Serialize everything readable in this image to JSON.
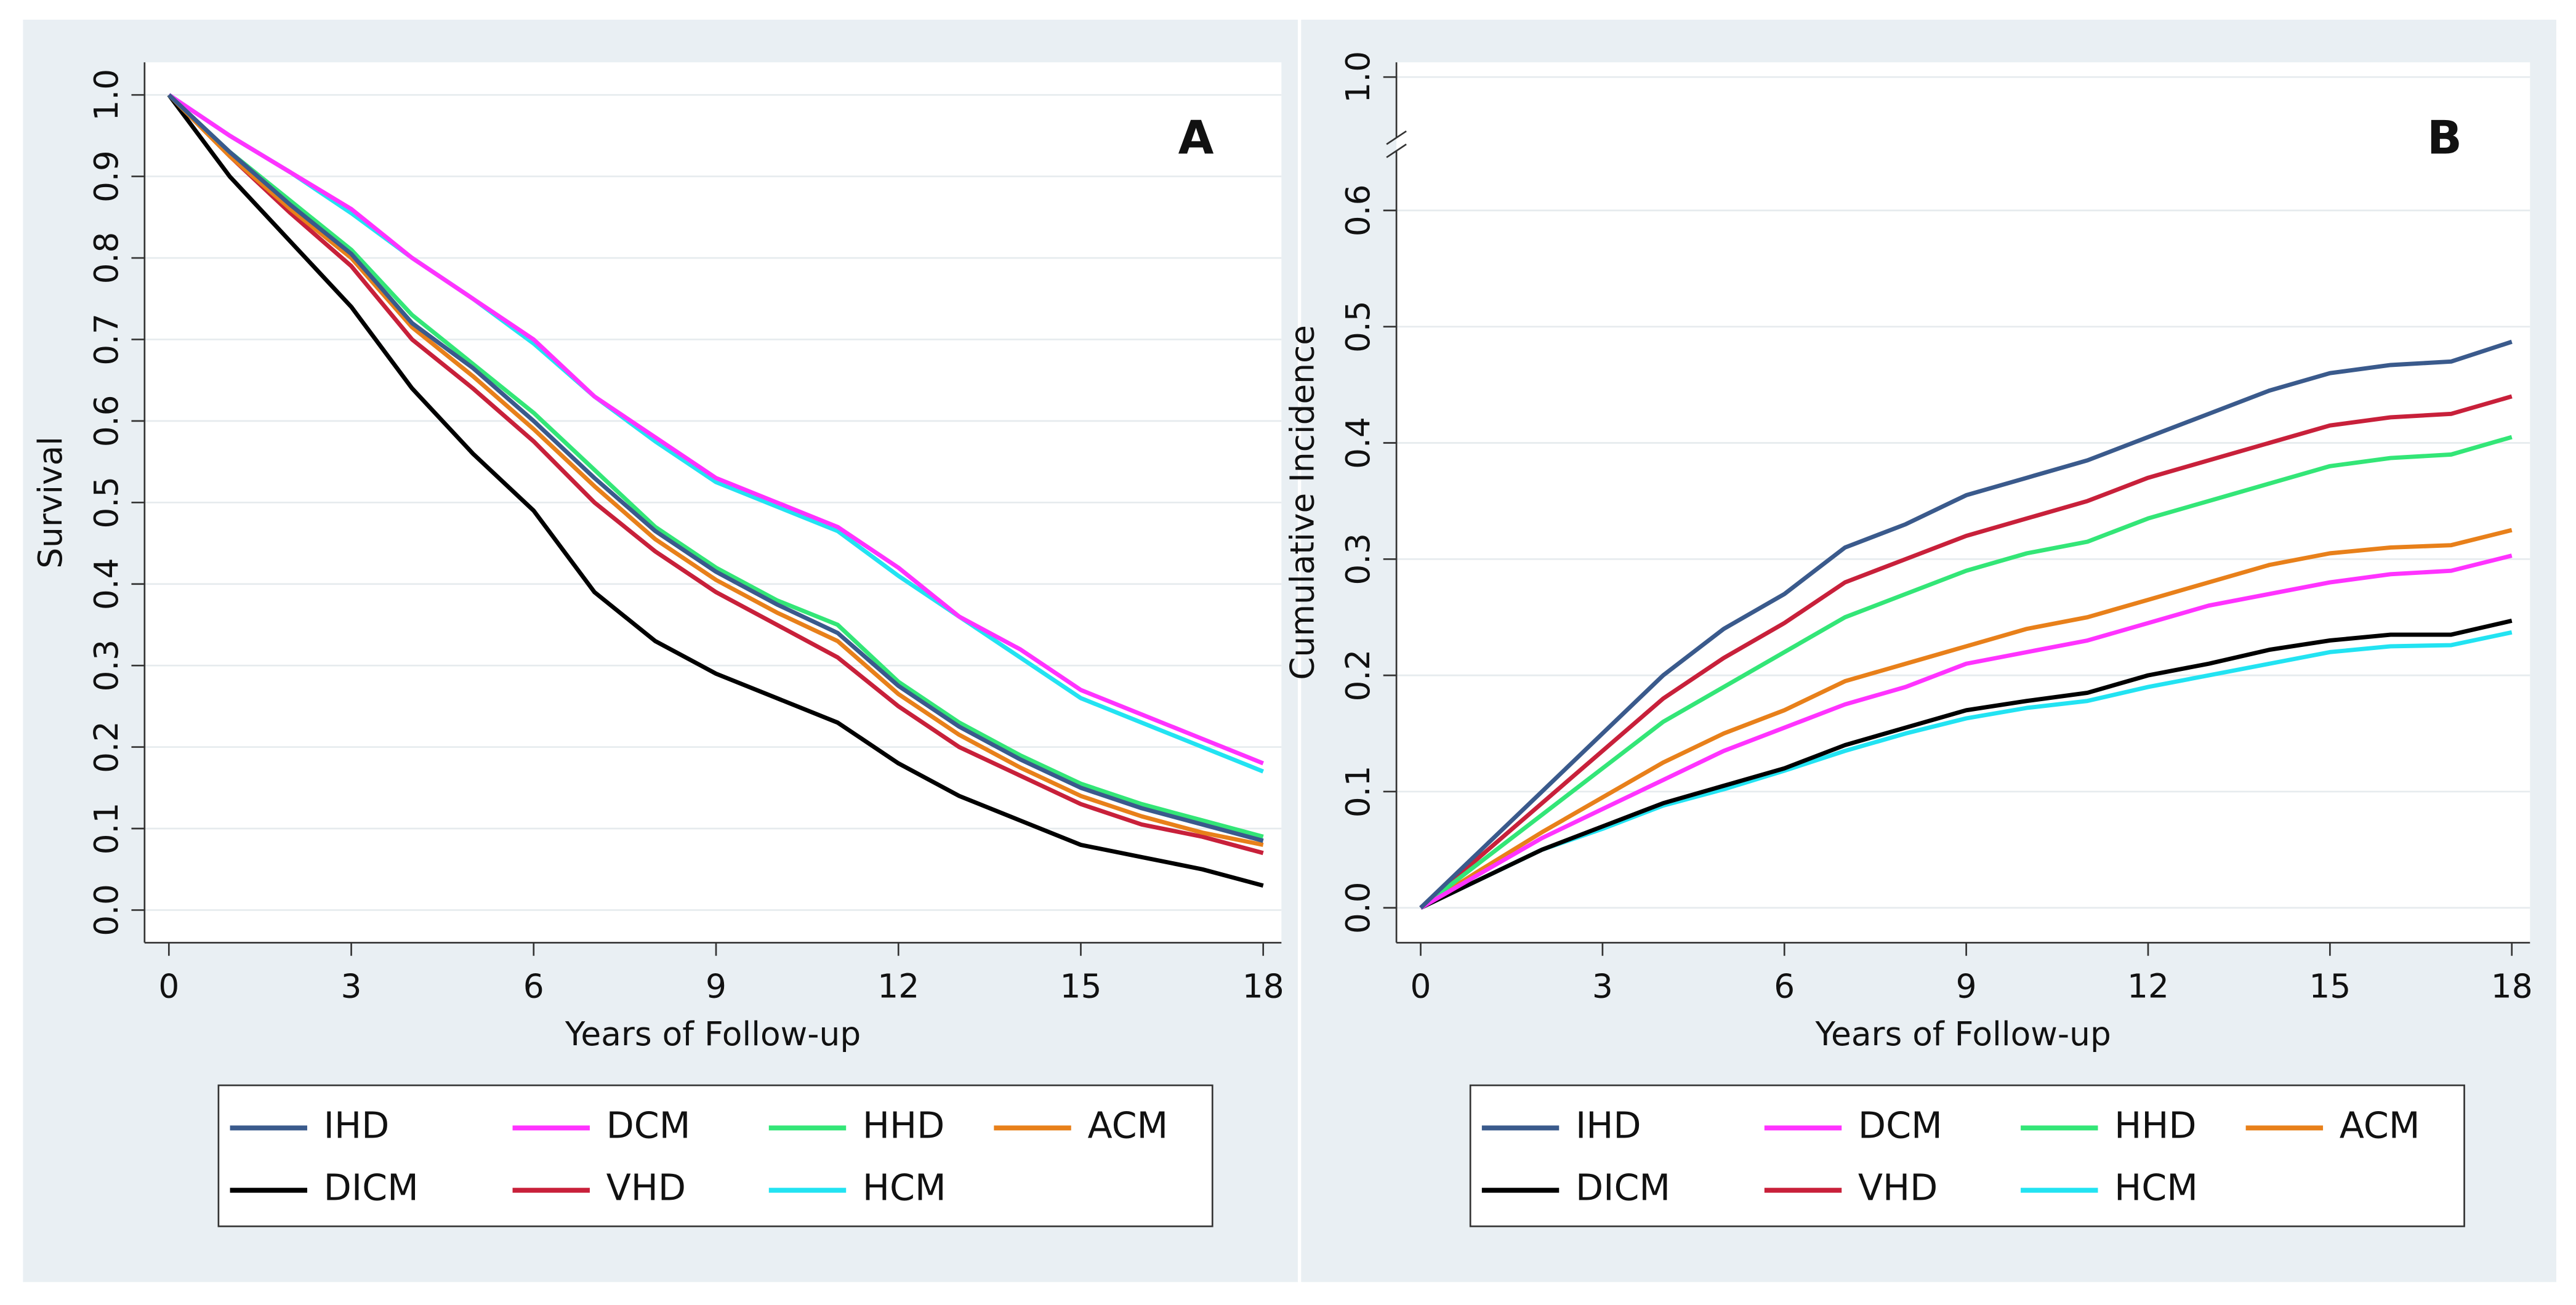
{
  "chart_data": [
    {
      "type": "line",
      "annotation": "A",
      "ylabel": "Survival",
      "xlabel": "Years of Follow-up",
      "x": [
        0,
        1,
        2,
        3,
        4,
        5,
        6,
        7,
        8,
        9,
        10,
        11,
        12,
        13,
        14,
        15,
        16,
        17,
        18
      ],
      "xlim": [
        -0.4,
        18.3
      ],
      "xticks": [
        0,
        3,
        6,
        9,
        12,
        15,
        18
      ],
      "ylim": [
        -0.04,
        1.04
      ],
      "yticks": [
        {
          "value": 0,
          "label": "0.0"
        },
        0.1,
        0.2,
        0.3,
        0.4,
        0.5,
        0.6,
        0.7,
        0.8,
        0.9,
        {
          "value": 1,
          "label": "1.0"
        }
      ],
      "grid": true,
      "series": [
        {
          "name": "IHD",
          "color": "#3a5a8c",
          "values": [
            1,
            0.93,
            0.865,
            0.805,
            0.72,
            0.665,
            0.6,
            0.53,
            0.465,
            0.415,
            0.375,
            0.34,
            0.275,
            0.225,
            0.185,
            0.15,
            0.125,
            0.105,
            0.085
          ]
        },
        {
          "name": "DCM",
          "color": "#ff33ff",
          "values": [
            1,
            0.95,
            0.905,
            0.86,
            0.8,
            0.75,
            0.7,
            0.63,
            0.58,
            0.53,
            0.5,
            0.47,
            0.42,
            0.36,
            0.32,
            0.27,
            0.24,
            0.21,
            0.18
          ]
        },
        {
          "name": "HHD",
          "color": "#33e677",
          "values": [
            1,
            0.93,
            0.87,
            0.81,
            0.73,
            0.67,
            0.61,
            0.54,
            0.47,
            0.42,
            0.38,
            0.35,
            0.28,
            0.23,
            0.19,
            0.155,
            0.13,
            0.11,
            0.09
          ]
        },
        {
          "name": "ACM",
          "color": "#e8801a",
          "values": [
            1,
            0.925,
            0.86,
            0.8,
            0.715,
            0.655,
            0.59,
            0.52,
            0.455,
            0.405,
            0.365,
            0.33,
            0.265,
            0.215,
            0.175,
            0.14,
            0.115,
            0.095,
            0.08
          ]
        },
        {
          "name": "DICM",
          "color": "#000000",
          "values": [
            1,
            0.9,
            0.82,
            0.74,
            0.64,
            0.56,
            0.49,
            0.39,
            0.33,
            0.29,
            0.26,
            0.23,
            0.18,
            0.14,
            0.11,
            0.08,
            0.065,
            0.05,
            0.03
          ]
        },
        {
          "name": "VHD",
          "color": "#c8203a",
          "values": [
            1,
            0.925,
            0.855,
            0.79,
            0.7,
            0.64,
            0.575,
            0.5,
            0.44,
            0.39,
            0.35,
            0.31,
            0.25,
            0.2,
            0.165,
            0.13,
            0.105,
            0.09,
            0.07
          ]
        },
        {
          "name": "HCM",
          "color": "#22e3f2",
          "values": [
            1,
            0.95,
            0.905,
            0.855,
            0.8,
            0.75,
            0.695,
            0.63,
            0.575,
            0.525,
            0.495,
            0.465,
            0.41,
            0.36,
            0.31,
            0.26,
            0.23,
            0.2,
            0.17
          ]
        }
      ]
    },
    {
      "type": "line",
      "annotation": "B",
      "ylabel": "Cumulative Incidence",
      "xlabel": "Years of Follow-up",
      "x": [
        0,
        1,
        2,
        3,
        4,
        5,
        6,
        7,
        8,
        9,
        10,
        11,
        12,
        13,
        14,
        15,
        16,
        17,
        18
      ],
      "xlim": [
        -0.4,
        18.3
      ],
      "xticks": [
        0,
        3,
        6,
        9,
        12,
        15,
        18
      ],
      "ylim": [
        -0.03,
        0.64
      ],
      "yticks": [
        {
          "value": 0,
          "label": "0.0"
        },
        0.1,
        0.2,
        0.3,
        0.4,
        0.5,
        0.6
      ],
      "ybreak_tick": {
        "value": 1,
        "label": "1.0"
      },
      "grid": true,
      "series": [
        {
          "name": "IHD",
          "color": "#3a5a8c",
          "values": [
            0,
            0.05,
            0.1,
            0.15,
            0.2,
            0.24,
            0.27,
            0.31,
            0.33,
            0.355,
            0.37,
            0.385,
            0.405,
            0.425,
            0.445,
            0.46,
            0.467,
            0.47,
            0.487
          ]
        },
        {
          "name": "DCM",
          "color": "#ff33ff",
          "values": [
            0,
            0.03,
            0.06,
            0.085,
            0.11,
            0.135,
            0.155,
            0.175,
            0.19,
            0.21,
            0.22,
            0.23,
            0.245,
            0.26,
            0.27,
            0.28,
            0.287,
            0.29,
            0.303
          ]
        },
        {
          "name": "HHD",
          "color": "#33e677",
          "values": [
            0,
            0.04,
            0.08,
            0.12,
            0.16,
            0.19,
            0.22,
            0.25,
            0.27,
            0.29,
            0.305,
            0.315,
            0.335,
            0.35,
            0.365,
            0.38,
            0.387,
            0.39,
            0.405
          ]
        },
        {
          "name": "ACM",
          "color": "#e8801a",
          "values": [
            0,
            0.033,
            0.065,
            0.095,
            0.125,
            0.15,
            0.17,
            0.195,
            0.21,
            0.225,
            0.24,
            0.25,
            0.265,
            0.28,
            0.295,
            0.305,
            0.31,
            0.312,
            0.325
          ]
        },
        {
          "name": "DICM",
          "color": "#000000",
          "values": [
            0,
            0.025,
            0.05,
            0.07,
            0.09,
            0.105,
            0.12,
            0.14,
            0.155,
            0.17,
            0.178,
            0.185,
            0.2,
            0.21,
            0.222,
            0.23,
            0.235,
            0.235,
            0.247
          ]
        },
        {
          "name": "VHD",
          "color": "#c8203a",
          "values": [
            0,
            0.045,
            0.09,
            0.135,
            0.18,
            0.215,
            0.245,
            0.28,
            0.3,
            0.32,
            0.335,
            0.35,
            0.37,
            0.385,
            0.4,
            0.415,
            0.422,
            0.425,
            0.44
          ]
        },
        {
          "name": "HCM",
          "color": "#22e3f2",
          "values": [
            0,
            0.025,
            0.05,
            0.068,
            0.088,
            0.102,
            0.118,
            0.135,
            0.15,
            0.163,
            0.172,
            0.178,
            0.19,
            0.2,
            0.21,
            0.22,
            0.225,
            0.226,
            0.237
          ]
        }
      ]
    }
  ]
}
